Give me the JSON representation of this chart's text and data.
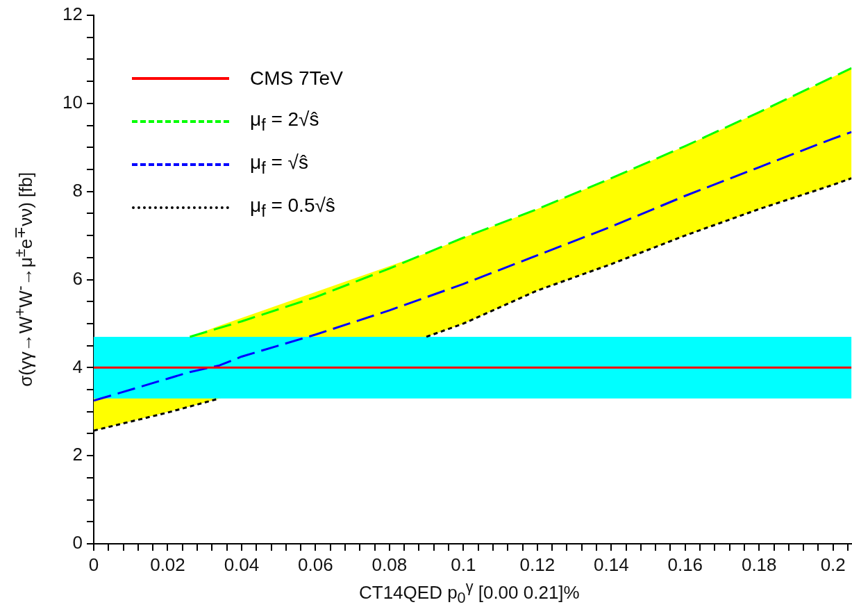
{
  "chart_data": {
    "type": "line",
    "xlabel": "CT14QED p$_{0}$$^{γ}$ [0.00 0.21]%",
    "ylabel": "σ(γγ→W$^{+}$W$^{-}$→μ$^{±}$e$^{∓}$νν) [fb]",
    "series": [
      {
        "name": "CMS 7TeV",
        "color": "#ff0000",
        "line_style": "solid",
        "x": [
          0,
          0.205
        ],
        "values": [
          4,
          4
        ]
      },
      {
        "name": "μ$_{f}$ = 2√ŝ",
        "color": "#00ff00",
        "line_style": "dashed",
        "x": [
          0.026,
          0.04,
          0.06,
          0.08,
          0.1,
          0.12,
          0.14,
          0.16,
          0.18,
          0.2,
          0.205
        ],
        "values": [
          4.7,
          5.05,
          5.6,
          6.25,
          6.95,
          7.6,
          8.3,
          9.03,
          9.8,
          10.6,
          10.8
        ]
      },
      {
        "name": "μ$_{f}$ = √ŝ",
        "color": "#0000ff",
        "line_style": "dashed",
        "x": [
          0,
          0.02,
          0.026,
          0.034,
          0.04,
          0.06,
          0.08,
          0.09,
          0.1,
          0.12,
          0.14,
          0.16,
          0.18,
          0.2,
          0.205
        ],
        "values": [
          3.25,
          3.75,
          3.9,
          4.05,
          4.25,
          4.75,
          5.3,
          5.6,
          5.9,
          6.55,
          7.2,
          7.9,
          8.55,
          9.2,
          9.35
        ],
        "lower": [
          2.57,
          null,
          3.12,
          3.3,
          null,
          null,
          null,
          4.7,
          5.0,
          5.75,
          6.35,
          7.0,
          7.6,
          8.15,
          8.3
        ],
        "upper": [
          4.0,
          null,
          4.7,
          4.95,
          null,
          null,
          null,
          6.6,
          6.95,
          7.6,
          8.3,
          9.03,
          9.8,
          10.6,
          10.8
        ]
      },
      {
        "name": "μ$_{f}$ = 0.5√ŝ",
        "color": "#000000",
        "line_style": "dotted",
        "x": [
          0,
          0.02,
          0.034,
          0.06,
          0.09,
          0.1,
          0.12,
          0.14,
          0.16,
          0.18,
          0.2,
          0.205
        ],
        "values": [
          2.57,
          2.98,
          3.3,
          null,
          4.7,
          5.0,
          5.75,
          6.35,
          7.0,
          7.6,
          8.15,
          8.3
        ]
      }
    ],
    "bands": [
      {
        "axis": "y",
        "from": 3.3,
        "to": 4.7,
        "color": "#00ffff"
      }
    ],
    "xlim": [
      0,
      0.205
    ],
    "xticks": [
      0,
      {
        "value": 0.004,
        "label": null
      },
      {
        "value": 0.008,
        "label": null
      },
      {
        "value": 0.012,
        "label": null
      },
      {
        "value": 0.016,
        "label": null
      },
      0.02,
      {
        "value": 0.024,
        "label": null
      },
      {
        "value": 0.028,
        "label": null
      },
      {
        "value": 0.032,
        "label": null
      },
      {
        "value": 0.036,
        "label": null
      },
      0.04,
      {
        "value": 0.044,
        "label": null
      },
      {
        "value": 0.048,
        "label": null
      },
      {
        "value": 0.052,
        "label": null
      },
      {
        "value": 0.056,
        "label": null
      },
      0.06,
      {
        "value": 0.064,
        "label": null
      },
      {
        "value": 0.068,
        "label": null
      },
      {
        "value": 0.072,
        "label": null
      },
      {
        "value": 0.076,
        "label": null
      },
      0.08,
      {
        "value": 0.084,
        "label": null
      },
      {
        "value": 0.088,
        "label": null
      },
      {
        "value": 0.092,
        "label": null
      },
      {
        "value": 0.096,
        "label": null
      },
      0.1,
      {
        "value": 0.104,
        "label": null
      },
      {
        "value": 0.108,
        "label": null
      },
      {
        "value": 0.112,
        "label": null
      },
      {
        "value": 0.116,
        "label": null
      },
      0.12,
      {
        "value": 0.124,
        "label": null
      },
      {
        "value": 0.128,
        "label": null
      },
      {
        "value": 0.132,
        "label": null
      },
      {
        "value": 0.136,
        "label": null
      },
      0.14,
      {
        "value": 0.144,
        "label": null
      },
      {
        "value": 0.148,
        "label": null
      },
      {
        "value": 0.152,
        "label": null
      },
      {
        "value": 0.156,
        "label": null
      },
      0.16,
      {
        "value": 0.164,
        "label": null
      },
      {
        "value": 0.168,
        "label": null
      },
      {
        "value": 0.172,
        "label": null
      },
      {
        "value": 0.176,
        "label": null
      },
      0.18,
      {
        "value": 0.184,
        "label": null
      },
      {
        "value": 0.188,
        "label": null
      },
      {
        "value": 0.192,
        "label": null
      },
      {
        "value": 0.196,
        "label": null
      },
      0.2,
      {
        "value": 0.204,
        "label": null
      }
    ],
    "ylim": [
      0,
      12
    ],
    "yticks": [
      0,
      {
        "value": 0.5,
        "label": null
      },
      {
        "value": 1,
        "label": null
      },
      {
        "value": 1.5,
        "label": null
      },
      2,
      {
        "value": 2.5,
        "label": null
      },
      {
        "value": 3,
        "label": null
      },
      {
        "value": 3.5,
        "label": null
      },
      4,
      {
        "value": 4.5,
        "label": null
      },
      {
        "value": 5,
        "label": null
      },
      {
        "value": 5.5,
        "label": null
      },
      6,
      {
        "value": 6.5,
        "label": null
      },
      {
        "value": 7,
        "label": null
      },
      {
        "value": 7.5,
        "label": null
      },
      8,
      {
        "value": 8.5,
        "label": null
      },
      {
        "value": 9,
        "label": null
      },
      {
        "value": 9.5,
        "label": null
      },
      10,
      {
        "value": 10.5,
        "label": null
      },
      {
        "value": 11,
        "label": null
      },
      {
        "value": 11.5,
        "label": null
      },
      12
    ],
    "legend": "top left",
    "grid": false,
    "marker": "none"
  }
}
